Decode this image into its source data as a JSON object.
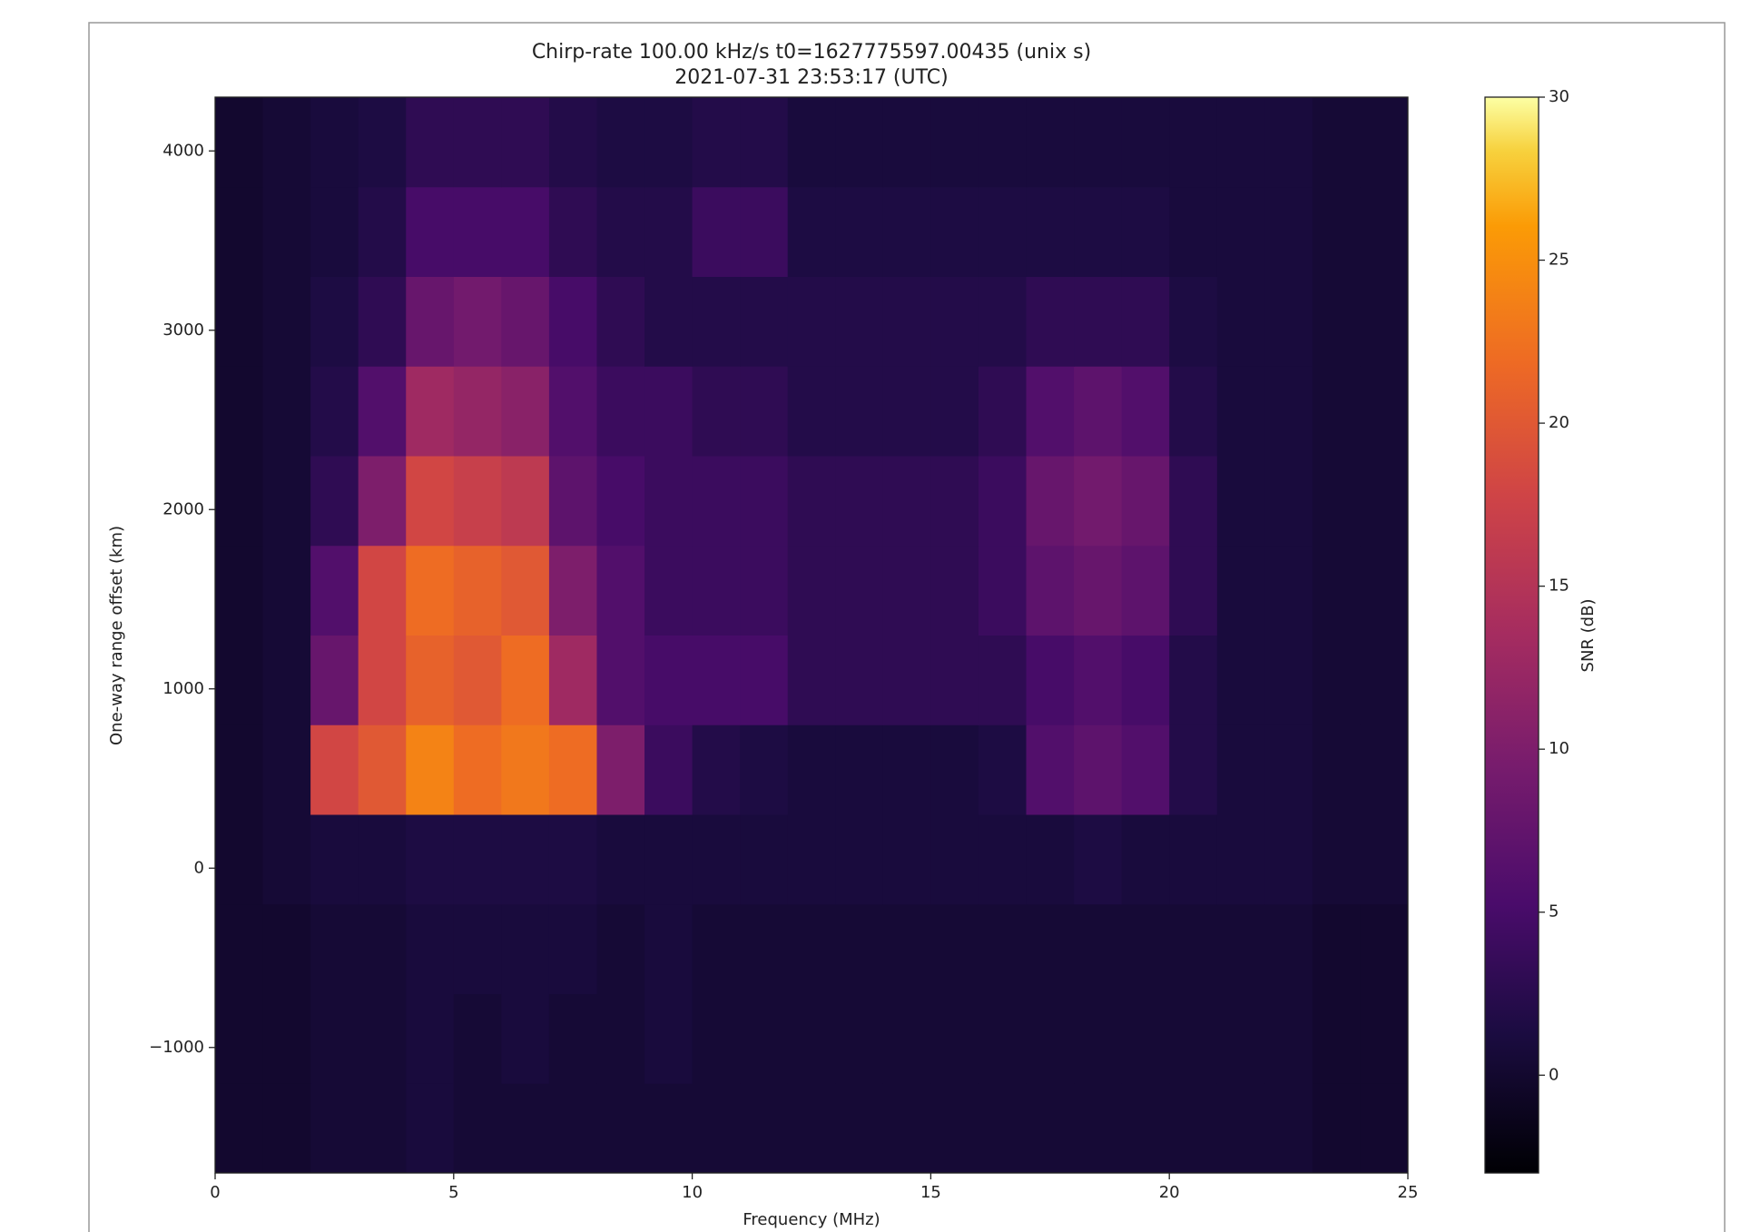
{
  "chart_data": {
    "type": "heatmap",
    "title": "Chirp-rate 100.00 kHz/s t0=1627775597.00435 (unix s)",
    "subtitle": "2021-07-31 23:53:17 (UTC)",
    "x_label": "Frequency (MHz)",
    "y_label": "One-way range offset (km)",
    "colorbar_label": "SNR (dB)",
    "colormap": "inferno",
    "xlim": [
      0,
      25
    ],
    "ylim": [
      -1700,
      4300
    ],
    "clim": [
      -3,
      30
    ],
    "xticks": [
      0,
      5,
      10,
      15,
      20,
      25
    ],
    "yticks": [
      {
        "value": -1000,
        "label": "−1000"
      },
      0,
      1000,
      2000,
      3000,
      4000
    ],
    "cticks": [
      0,
      5,
      10,
      15,
      20,
      25,
      30
    ],
    "x_bins": [
      0,
      1,
      2,
      3,
      4,
      5,
      6,
      7,
      8,
      9,
      10,
      11,
      12,
      13,
      14,
      15,
      16,
      17,
      18,
      19,
      20,
      21,
      22,
      23,
      24,
      25
    ],
    "y_bins": [
      -1700,
      -1200,
      -700,
      -200,
      300,
      800,
      1300,
      1800,
      2300,
      2800,
      3300,
      3800,
      4300
    ],
    "z": [
      [
        0,
        0,
        0.5,
        0.5,
        1,
        0.5,
        0.5,
        0.5,
        0.5,
        0.5,
        0.5,
        0.5,
        0.5,
        0.5,
        0.5,
        0.5,
        0.5,
        0.5,
        0.5,
        0.5,
        0.5,
        0.5,
        0.5,
        0,
        0
      ],
      [
        0,
        0,
        0.5,
        0.5,
        1,
        0.5,
        1,
        0.5,
        0.5,
        1,
        0.5,
        0.5,
        0.5,
        0.5,
        0.5,
        0.5,
        0.5,
        0.5,
        0.5,
        0.5,
        0.5,
        0.5,
        0.5,
        0,
        0
      ],
      [
        0,
        0,
        0.5,
        0.5,
        1,
        1,
        1,
        1,
        0.5,
        1,
        0.5,
        0.5,
        0.5,
        0.5,
        0.5,
        0.5,
        0.5,
        0.5,
        0.5,
        0.5,
        0.5,
        0.5,
        0.5,
        0,
        0
      ],
      [
        0,
        0.5,
        1,
        1,
        1.5,
        1.5,
        1.5,
        1.5,
        1,
        1,
        1,
        1,
        1,
        1,
        1,
        1,
        1,
        1,
        1.5,
        1,
        1,
        1,
        1,
        0.5,
        0.5
      ],
      [
        0,
        0.5,
        18,
        20,
        24,
        22,
        23,
        22,
        10,
        4,
        2,
        1.5,
        1,
        1,
        1,
        1,
        1.5,
        6,
        7,
        6,
        2,
        1,
        1,
        0.5,
        0.5
      ],
      [
        0,
        0.5,
        8,
        18,
        21,
        20,
        22,
        13,
        6,
        5,
        5,
        5,
        3,
        3,
        3,
        3,
        3,
        5,
        6,
        5,
        2,
        1,
        1,
        0.5,
        0.5
      ],
      [
        0,
        0.5,
        6,
        18,
        22,
        21,
        20,
        10,
        6,
        4,
        4,
        4,
        3,
        3,
        3,
        3,
        4,
        7,
        8,
        7,
        3,
        1,
        1,
        0.5,
        0.5
      ],
      [
        0,
        0.5,
        3,
        10,
        18,
        17,
        16,
        7,
        5,
        4,
        4,
        4,
        3,
        3,
        3,
        3,
        4,
        8,
        9,
        8,
        3,
        1,
        1,
        0.5,
        0.5
      ],
      [
        0,
        0.5,
        2,
        6,
        13,
        12,
        11,
        6,
        4,
        4,
        3,
        3,
        2,
        2,
        2,
        2,
        3,
        6,
        7,
        6,
        2,
        1,
        1,
        0.5,
        0.5
      ],
      [
        0,
        0.5,
        1.5,
        3,
        8,
        9,
        8,
        5,
        3,
        2,
        2,
        2,
        2,
        2,
        2,
        2,
        2,
        3,
        3,
        3,
        1.5,
        1,
        1,
        0.5,
        0.5
      ],
      [
        0,
        0.5,
        1,
        2,
        5,
        5,
        5,
        3,
        2,
        2,
        4,
        4,
        1.5,
        1.5,
        1.5,
        1.5,
        1.5,
        1.5,
        1.5,
        1.5,
        1,
        1,
        1,
        0.5,
        0.5
      ],
      [
        0,
        0.5,
        1,
        1.5,
        3,
        3,
        3,
        2,
        1.5,
        1.5,
        2,
        2,
        1,
        1,
        1,
        1,
        1,
        1,
        1,
        1,
        1,
        1,
        1,
        0.5,
        0.5
      ]
    ]
  }
}
